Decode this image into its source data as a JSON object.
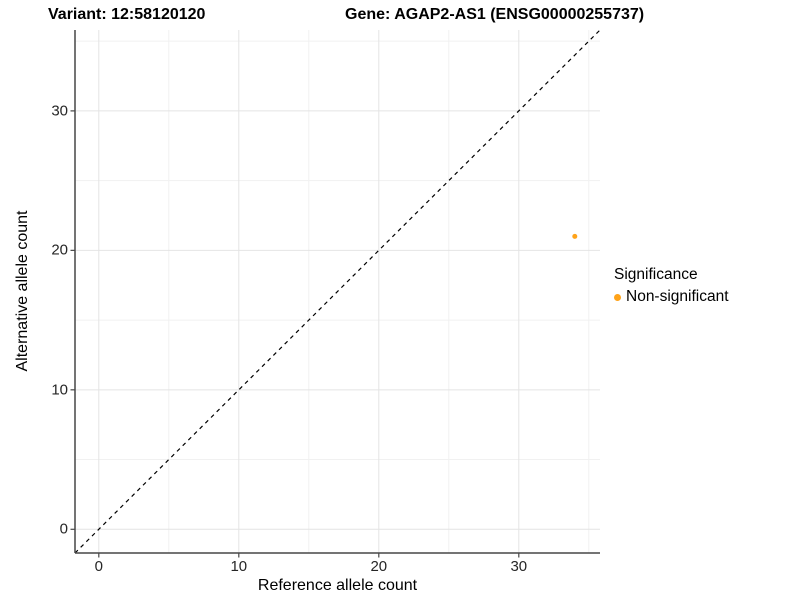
{
  "chart_data": {
    "type": "scatter",
    "title_left": "Variant: 12:58120120",
    "title_right": "Gene: AGAP2-AS1 (ENSG00000255737)",
    "xlabel": "Reference allele count",
    "ylabel": "Alternative allele count",
    "x_ticks": [
      0,
      10,
      20,
      30
    ],
    "y_ticks": [
      0,
      10,
      20,
      30
    ],
    "x_minor_ticks": [
      5,
      15,
      25,
      35
    ],
    "y_minor_ticks": [
      5,
      15,
      25,
      35
    ],
    "xlim": [
      -1.7,
      35.8
    ],
    "ylim": [
      -1.7,
      35.8
    ],
    "grid": true,
    "points": [
      {
        "x": 34,
        "y": 21,
        "series": "Non-significant"
      }
    ],
    "reference_line": {
      "slope": 1,
      "intercept": 0,
      "style": "dashed",
      "color": "#000000"
    },
    "legend": {
      "title": "Significance",
      "position": "right",
      "entries": [
        {
          "label": "Non-significant",
          "color": "#FFA319"
        }
      ]
    },
    "colors": {
      "point": "#FFA319",
      "grid_major": "#E4E4E4",
      "grid_minor": "#F1F1F1",
      "axis_line": "#474747",
      "tick_text": "#262626",
      "title_text": "#000000"
    }
  }
}
